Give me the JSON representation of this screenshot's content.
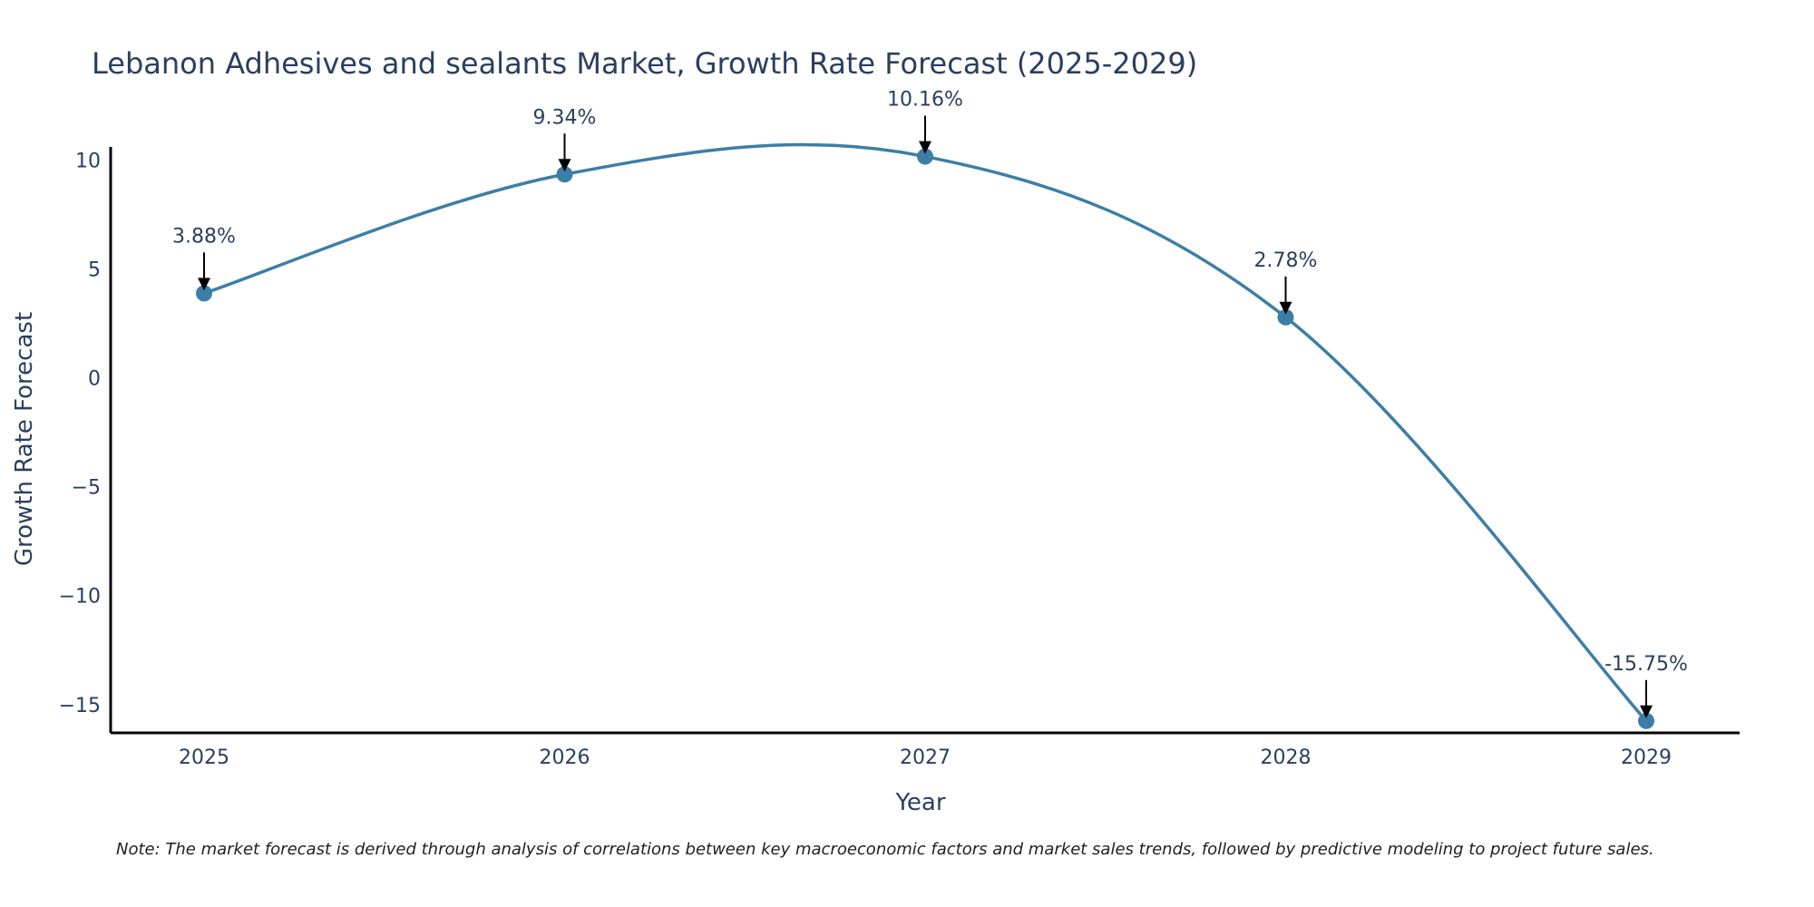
{
  "chart_data": {
    "type": "line",
    "title": "Lebanon Adhesives and sealants Market, Growth Rate Forecast (2025-2029)",
    "xlabel": "Year",
    "ylabel": "Growth Rate Forecast",
    "categories": [
      "2025",
      "2026",
      "2027",
      "2028",
      "2029"
    ],
    "series": [
      {
        "values": [
          3.88,
          9.34,
          10.16,
          2.78,
          -15.75
        ],
        "labels": [
          "3.88%",
          "9.34%",
          "10.16%",
          "2.78%",
          "-15.75%"
        ]
      }
    ],
    "y_ticks": [
      10,
      5,
      0,
      -5,
      -10,
      -15
    ],
    "y_tick_labels": [
      "10",
      "5",
      "0",
      "−5",
      "−10",
      "−15"
    ],
    "ylim": [
      -16.3,
      10.6
    ],
    "grid": false,
    "line_shape": "smooth",
    "line_color": "#3d7ea6",
    "marker_color": "#3d7ea6",
    "note": "Note: The market forecast is derived through analysis of correlations between key macroeconomic factors and market sales trends, followed by predictive modeling to project future sales."
  }
}
